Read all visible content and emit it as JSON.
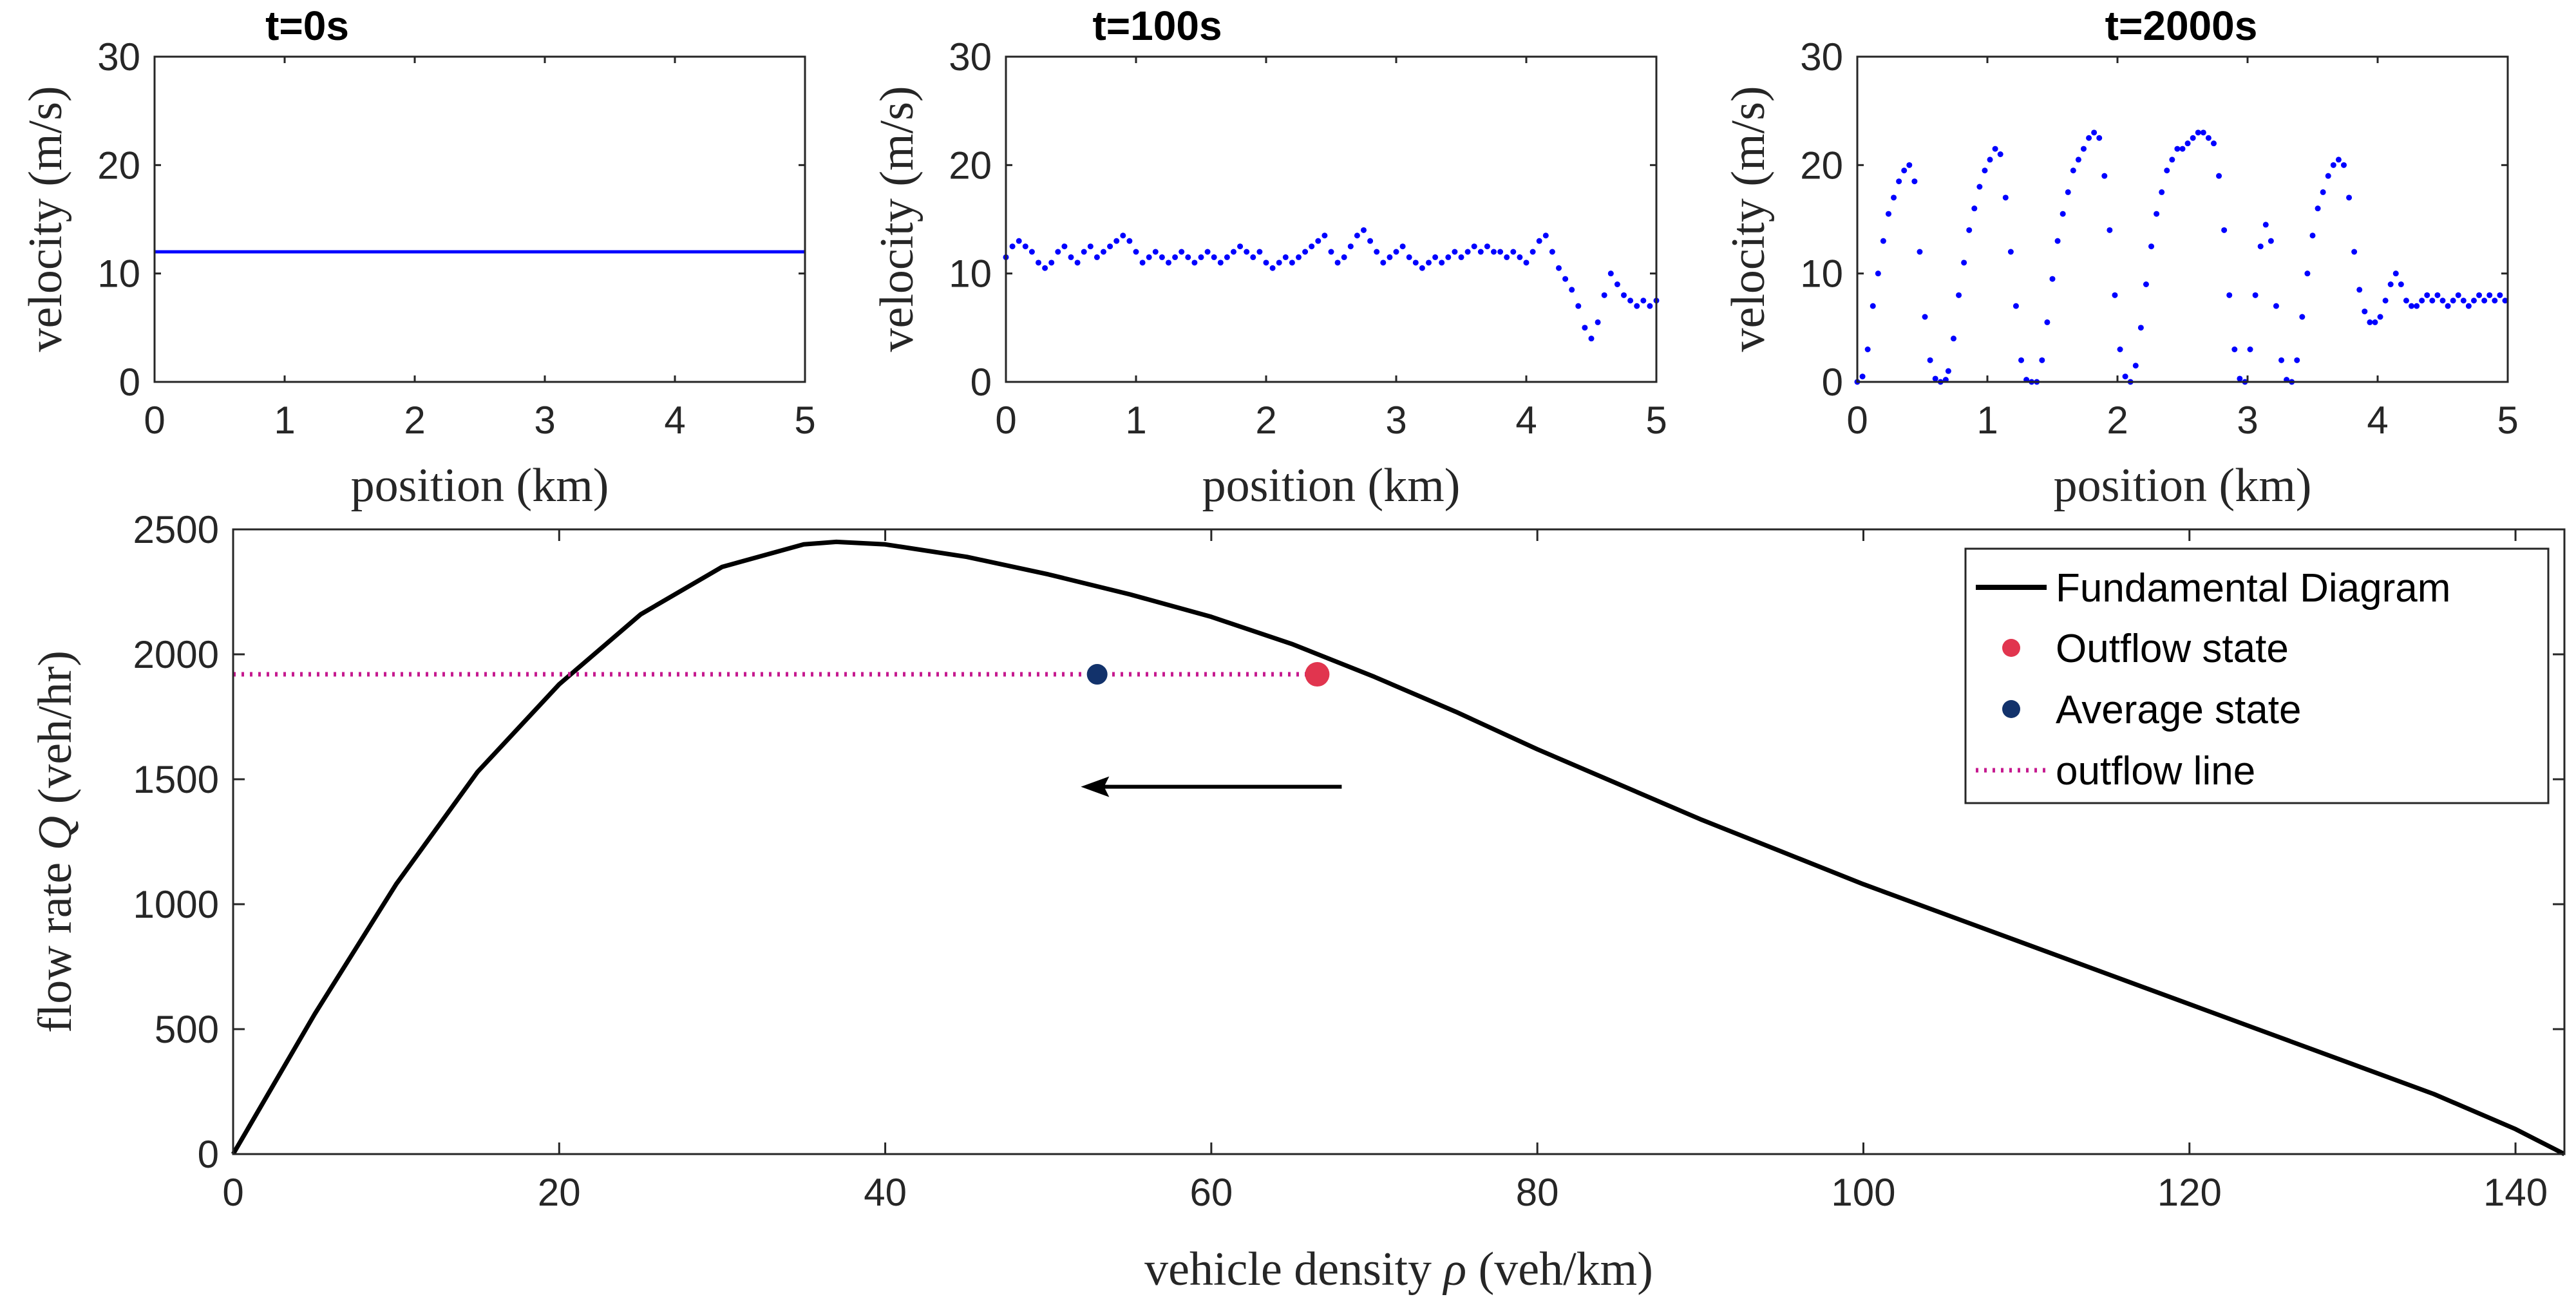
{
  "chart_data": [
    {
      "id": "p1",
      "type": "line",
      "title": "t=0s",
      "xlabel": "position (km)",
      "ylabel": "velocity (m/s)",
      "xlim": [
        0,
        5
      ],
      "ylim": [
        0,
        30
      ],
      "xticks": [
        0,
        1,
        2,
        3,
        4,
        5
      ],
      "yticks": [
        0,
        10,
        20,
        30
      ],
      "series": [
        {
          "name": "velocity",
          "color": "#0000ff",
          "style": "line",
          "x": [
            0,
            5
          ],
          "y": [
            12,
            12
          ]
        }
      ]
    },
    {
      "id": "p2",
      "type": "scatter",
      "title": "t=100s",
      "xlabel": "position (km)",
      "ylabel": "velocity (m/s)",
      "xlim": [
        0,
        5
      ],
      "ylim": [
        0,
        30
      ],
      "xticks": [
        0,
        1,
        2,
        3,
        4,
        5
      ],
      "yticks": [
        0,
        10,
        20,
        30
      ],
      "series": [
        {
          "name": "velocity",
          "color": "#0000ff",
          "style": "dots",
          "x": [
            0,
            0.05,
            0.1,
            0.15,
            0.2,
            0.25,
            0.3,
            0.35,
            0.4,
            0.45,
            0.5,
            0.55,
            0.6,
            0.65,
            0.7,
            0.75,
            0.8,
            0.85,
            0.9,
            0.95,
            1.0,
            1.05,
            1.1,
            1.15,
            1.2,
            1.25,
            1.3,
            1.35,
            1.4,
            1.45,
            1.5,
            1.55,
            1.6,
            1.65,
            1.7,
            1.75,
            1.8,
            1.85,
            1.9,
            1.95,
            2.0,
            2.05,
            2.1,
            2.15,
            2.2,
            2.25,
            2.3,
            2.35,
            2.4,
            2.45,
            2.5,
            2.55,
            2.6,
            2.65,
            2.7,
            2.75,
            2.8,
            2.85,
            2.9,
            2.95,
            3.0,
            3.05,
            3.1,
            3.15,
            3.2,
            3.25,
            3.3,
            3.35,
            3.4,
            3.45,
            3.5,
            3.55,
            3.6,
            3.65,
            3.7,
            3.75,
            3.8,
            3.85,
            3.9,
            3.95,
            4.0,
            4.05,
            4.1,
            4.15,
            4.2,
            4.25,
            4.3,
            4.35,
            4.4,
            4.45,
            4.5,
            4.55,
            4.6,
            4.65,
            4.7,
            4.75,
            4.8,
            4.85,
            4.9,
            4.95,
            5.0
          ],
          "y": [
            11.5,
            12.5,
            13.0,
            12.5,
            12.0,
            11.0,
            10.5,
            11.0,
            12.0,
            12.5,
            11.5,
            11.0,
            12.0,
            12.5,
            11.5,
            12.0,
            12.5,
            13.0,
            13.5,
            13.0,
            12.0,
            11.0,
            11.5,
            12.0,
            11.5,
            11.0,
            11.5,
            12.0,
            11.5,
            11.0,
            11.5,
            12.0,
            11.5,
            11.0,
            11.5,
            12.0,
            12.5,
            12.0,
            11.5,
            12.0,
            11.0,
            10.5,
            11.0,
            11.5,
            11.0,
            11.5,
            12.0,
            12.5,
            13.0,
            13.5,
            12.0,
            11.0,
            11.5,
            12.5,
            13.5,
            14.0,
            13.0,
            12.0,
            11.0,
            11.5,
            12.0,
            12.5,
            11.5,
            11.0,
            10.5,
            11.0,
            11.5,
            11.0,
            11.5,
            12.0,
            11.5,
            12.0,
            12.5,
            12.0,
            12.5,
            12.0,
            12.0,
            11.5,
            12.0,
            11.5,
            11.0,
            12.0,
            13.0,
            13.5,
            12.0,
            10.5,
            9.5,
            8.5,
            7.0,
            5.0,
            4.0,
            5.5,
            8.0,
            10.0,
            9.0,
            8.0,
            7.5,
            7.0,
            7.5,
            7.0,
            7.5
          ]
        }
      ]
    },
    {
      "id": "p3",
      "type": "scatter",
      "title": "t=2000s",
      "xlabel": "position (km)",
      "ylabel": "velocity (m/s)",
      "xlim": [
        0,
        5
      ],
      "ylim": [
        0,
        30
      ],
      "xticks": [
        0,
        1,
        2,
        3,
        4,
        5
      ],
      "yticks": [
        0,
        10,
        20,
        30
      ],
      "series": [
        {
          "name": "velocity",
          "color": "#0000ff",
          "style": "dots",
          "x": [
            0.0,
            0.04,
            0.08,
            0.12,
            0.16,
            0.2,
            0.24,
            0.28,
            0.32,
            0.36,
            0.4,
            0.44,
            0.48,
            0.52,
            0.56,
            0.6,
            0.64,
            0.68,
            0.7,
            0.74,
            0.78,
            0.82,
            0.86,
            0.9,
            0.94,
            0.98,
            1.02,
            1.06,
            1.1,
            1.14,
            1.18,
            1.22,
            1.26,
            1.3,
            1.34,
            1.38,
            1.42,
            1.46,
            1.5,
            1.54,
            1.58,
            1.62,
            1.66,
            1.7,
            1.74,
            1.78,
            1.82,
            1.86,
            1.9,
            1.94,
            1.98,
            2.02,
            2.06,
            2.1,
            2.14,
            2.18,
            2.22,
            2.26,
            2.3,
            2.34,
            2.38,
            2.42,
            2.46,
            2.5,
            2.54,
            2.58,
            2.62,
            2.66,
            2.7,
            2.74,
            2.78,
            2.82,
            2.86,
            2.9,
            2.94,
            2.98,
            3.02,
            3.06,
            3.1,
            3.14,
            3.18,
            3.22,
            3.26,
            3.3,
            3.34,
            3.38,
            3.42,
            3.46,
            3.5,
            3.54,
            3.58,
            3.62,
            3.66,
            3.7,
            3.74,
            3.78,
            3.82,
            3.86,
            3.9,
            3.94,
            3.98,
            4.02,
            4.06,
            4.1,
            4.14,
            4.18,
            4.22,
            4.26,
            4.3,
            4.34,
            4.38,
            4.42,
            4.46,
            4.5,
            4.54,
            4.58,
            4.62,
            4.66,
            4.7,
            4.74,
            4.78,
            4.82,
            4.86,
            4.9,
            4.94,
            4.98
          ],
          "y": [
            0,
            0.5,
            3.0,
            7.0,
            10.0,
            13.0,
            15.5,
            17.0,
            18.5,
            19.5,
            20.0,
            18.5,
            12.0,
            6.0,
            2.0,
            0.3,
            0,
            0.2,
            1.0,
            4.0,
            8.0,
            11.0,
            14.0,
            16.0,
            18.0,
            19.5,
            20.5,
            21.5,
            21.0,
            17.0,
            12.0,
            7.0,
            2.0,
            0.2,
            0,
            0,
            2.0,
            5.5,
            9.5,
            13.0,
            15.5,
            17.5,
            19.5,
            20.5,
            21.5,
            22.5,
            23.0,
            22.5,
            19.0,
            14.0,
            8.0,
            3.0,
            0.5,
            0,
            1.5,
            5.0,
            9.0,
            12.5,
            15.5,
            17.5,
            19.5,
            20.5,
            21.5,
            21.5,
            22.0,
            22.5,
            23.0,
            23.0,
            22.5,
            22.0,
            19.0,
            14.0,
            8.0,
            3.0,
            0.3,
            0,
            3.0,
            8.0,
            12.5,
            14.5,
            13.0,
            7.0,
            2.0,
            0.2,
            0,
            2.0,
            6.0,
            10.0,
            13.5,
            16.0,
            17.5,
            19.0,
            20.0,
            20.5,
            20.0,
            17.0,
            12.0,
            8.5,
            6.5,
            5.5,
            5.5,
            6.0,
            7.5,
            9.0,
            10.0,
            9.0,
            7.5,
            7.0,
            7.0,
            7.5,
            8.0,
            7.5,
            8.0,
            7.5,
            7.0,
            7.5,
            8.0,
            7.5,
            7.0,
            7.5,
            8.0,
            7.5,
            8.0,
            7.5,
            8.0,
            7.5
          ]
        }
      ]
    },
    {
      "id": "p4",
      "type": "line",
      "title": "",
      "xlabel_prefix": "vehicle density ",
      "xlabel_symbol": "ρ",
      "xlabel_suffix": " (veh/km)",
      "ylabel_prefix": "flow rate ",
      "ylabel_symbol": "Q",
      "ylabel_suffix": " (veh/hr)",
      "xlim": [
        0,
        143
      ],
      "ylim": [
        0,
        2500
      ],
      "xticks": [
        0,
        20,
        40,
        60,
        80,
        100,
        120,
        140
      ],
      "yticks": [
        0,
        500,
        1000,
        1500,
        2000,
        2500
      ],
      "series": [
        {
          "name": "Fundamental Diagram",
          "color": "#000000",
          "style": "line",
          "x": [
            0,
            5,
            10,
            15,
            20,
            25,
            30,
            35,
            37,
            40,
            45,
            50,
            55,
            60,
            65,
            70,
            75,
            80,
            85,
            90,
            95,
            100,
            105,
            110,
            115,
            120,
            125,
            130,
            135,
            140,
            143
          ],
          "y": [
            0,
            560,
            1080,
            1530,
            1880,
            2160,
            2350,
            2440,
            2450,
            2440,
            2390,
            2320,
            2240,
            2150,
            2040,
            1910,
            1770,
            1620,
            1480,
            1340,
            1210,
            1080,
            960,
            840,
            720,
            600,
            480,
            360,
            240,
            100,
            0
          ]
        },
        {
          "name": "Outflow state",
          "color": "#e1354f",
          "style": "marker-large",
          "x": [
            66.5
          ],
          "y": [
            1920
          ]
        },
        {
          "name": "Average state",
          "color": "#12326b",
          "style": "marker",
          "x": [
            53
          ],
          "y": [
            1920
          ]
        },
        {
          "name": "outflow line",
          "color": "#c61a8f",
          "style": "dotted",
          "x": [
            0,
            66.5
          ],
          "y": [
            1920,
            1920
          ]
        }
      ],
      "annotations": [
        {
          "type": "arrow",
          "from": [
            68,
            1470
          ],
          "to": [
            52,
            1470
          ],
          "color": "#000000"
        }
      ],
      "legend": {
        "position": "top-right",
        "entries": [
          "Fundamental Diagram",
          "Outflow state",
          "Average state",
          "outflow line"
        ]
      }
    }
  ]
}
